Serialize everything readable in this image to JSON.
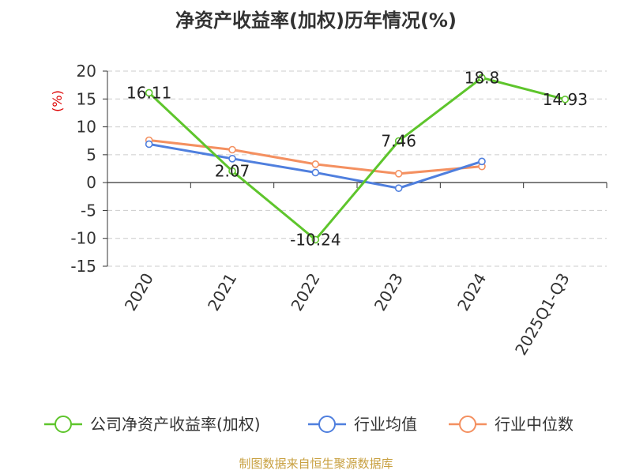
{
  "title": "净资产收益率(加权)历年情况(%)",
  "unit_label": "(%)",
  "source": "制图数据来自恒生聚源数据库",
  "chart_data": {
    "type": "line",
    "title": "净资产收益率(加权)历年情况(%)",
    "xlabel": "",
    "ylabel": "(%)",
    "categories": [
      "2020",
      "2021",
      "2022",
      "2023",
      "2024",
      "2025Q1-Q3"
    ],
    "ylim": [
      -15,
      20
    ],
    "yticks": [
      "20",
      "15",
      "10",
      "5",
      "0",
      "-5",
      "-10",
      "-15"
    ],
    "grid": true,
    "legend_position": "bottom",
    "series": [
      {
        "name": "公司净资产收益率(加权)",
        "color": "#5ec52c",
        "values": [
          16.11,
          2.07,
          -10.24,
          7.46,
          18.8,
          14.93
        ],
        "labels": [
          "16.11",
          "2.07",
          "-10.24",
          "7.46",
          "18.8",
          "14.93"
        ]
      },
      {
        "name": "行业均值",
        "color": "#4f7fde",
        "values": [
          6.9,
          4.3,
          1.8,
          -1.0,
          3.8,
          null
        ]
      },
      {
        "name": "行业中位数",
        "color": "#f49060",
        "values": [
          7.6,
          5.9,
          3.3,
          1.6,
          2.9,
          null
        ]
      }
    ]
  }
}
